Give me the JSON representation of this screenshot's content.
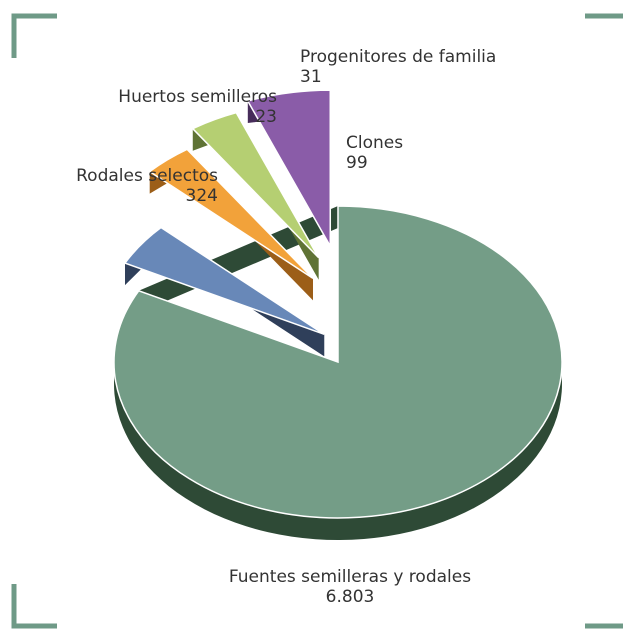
{
  "chart_data": {
    "type": "pie",
    "style": "3d-exploded",
    "title": "",
    "slices": [
      {
        "label": "Fuentes semilleras y rodales",
        "value_text": "6.803",
        "value": 6803,
        "color": "#749d87",
        "side_color": "#2e4a36"
      },
      {
        "label": "Rodales selectos",
        "value_text": "324",
        "value": 324,
        "color": "#6888b8",
        "side_color": "#2f3f5a"
      },
      {
        "label": "Huertos semilleros",
        "value_text": "23",
        "value": 23,
        "color": "#f2a23a",
        "side_color": "#9c5e18"
      },
      {
        "label": "Progenitores de familia",
        "value_text": "31",
        "value": 31,
        "color": "#b5cf72",
        "side_color": "#5f7335"
      },
      {
        "label": "Clones",
        "value_text": "99",
        "value": 99,
        "color": "#8a5ca8",
        "side_color": "#472c5a"
      }
    ]
  },
  "decor": {
    "corner_color": "#6f9a87"
  }
}
